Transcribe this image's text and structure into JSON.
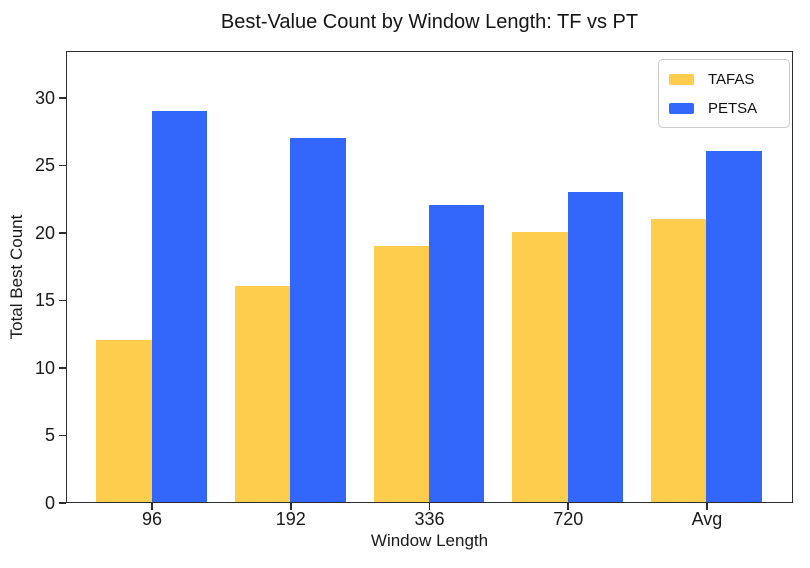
{
  "chart_data": {
    "type": "bar",
    "title": "Best-Value Count by Window Length: TF vs PT",
    "xlabel": "Window Length",
    "ylabel": "Total Best Count",
    "categories": [
      "96",
      "192",
      "336",
      "720",
      "Avg"
    ],
    "series": [
      {
        "name": "TAFAS",
        "color": "#FFCD4E",
        "values": [
          12,
          16,
          19,
          20,
          21
        ]
      },
      {
        "name": "PETSA",
        "color": "#3366FA",
        "values": [
          29,
          27,
          22,
          23,
          26
        ]
      }
    ],
    "ylim": [
      0,
      33.5
    ],
    "yticks": [
      0,
      5,
      10,
      15,
      20,
      25,
      30
    ],
    "grid": false,
    "legend_position": "upper right",
    "background_color": "#ffffff",
    "spine_color": "#2e2e2e"
  }
}
